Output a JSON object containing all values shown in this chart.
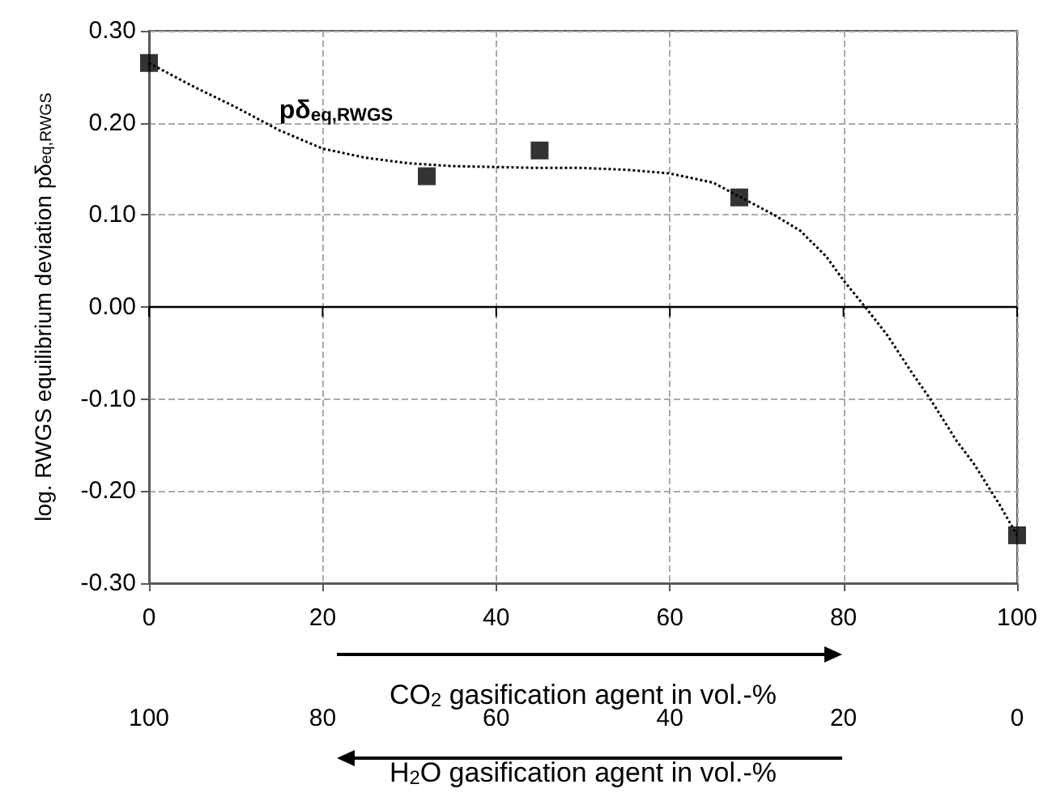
{
  "chart_data": {
    "type": "scatter",
    "ylabel": "log. RWGS equilibrium deviation pδ$_{eq,RWGS}$",
    "xlabel": "CO$_{2}$ gasification agent in vol.-%",
    "x2label": "H$_{2}$O gasification agent in vol.-%",
    "xlim": [
      0,
      100
    ],
    "xticks": [
      0,
      20,
      40,
      60,
      80,
      100
    ],
    "x2lim": [
      100,
      0
    ],
    "x2ticks": [
      100,
      80,
      60,
      40,
      20,
      0
    ],
    "ylim": [
      -0.3,
      0.3
    ],
    "yticks": [
      {
        "value": -0.3,
        "label": "-0.30"
      },
      {
        "value": -0.2,
        "label": "-0.20"
      },
      {
        "value": -0.1,
        "label": "-0.10"
      },
      {
        "value": 0,
        "label": "0.00"
      },
      {
        "value": 0.1,
        "label": "0.10"
      },
      {
        "value": 0.2,
        "label": "0.20"
      },
      {
        "value": 0.3,
        "label": "0.30"
      }
    ],
    "grid": true,
    "marker": "square",
    "series": [
      {
        "type": "scatter",
        "color": "#000000",
        "x": [
          0,
          32,
          45,
          68,
          100
        ],
        "values": [
          0.265,
          0.142,
          0.17,
          0.119,
          -0.248
        ]
      },
      {
        "type": "line",
        "name": "pδ$_{eq,RWGS}$",
        "color": "#000000",
        "line_style": "dotted",
        "marker": "none",
        "x": [
          0,
          5,
          10,
          15,
          20,
          25,
          30,
          35,
          40,
          45,
          50,
          55,
          60,
          65,
          68,
          72,
          75,
          78,
          80,
          82.5,
          85,
          88,
          90,
          93,
          95,
          98,
          100
        ],
        "values": [
          0.265,
          0.24,
          0.217,
          0.192,
          0.172,
          0.162,
          0.156,
          0.153,
          0.152,
          0.151,
          0.151,
          0.149,
          0.145,
          0.135,
          0.12,
          0.1,
          0.083,
          0.055,
          0.029,
          0,
          -0.03,
          -0.073,
          -0.1,
          -0.145,
          -0.17,
          -0.215,
          -0.248
        ]
      }
    ],
    "ref_lines": [
      {
        "axis": "y",
        "value": 0,
        "color": "#000000"
      }
    ]
  }
}
